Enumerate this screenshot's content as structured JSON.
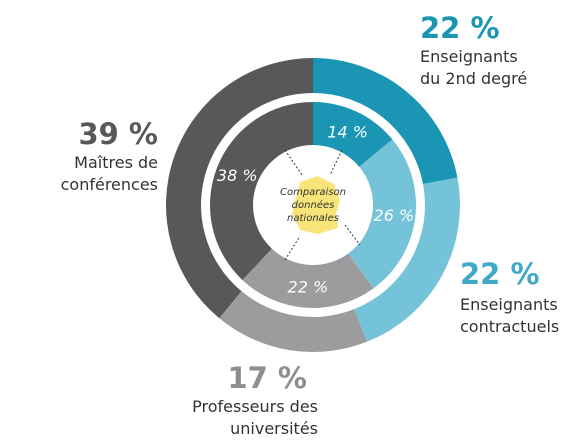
{
  "chart_data": {
    "type": "double-donut",
    "center_label": "Comparaison données nationales",
    "series": [
      {
        "name": "Enseignants du 2nd degré",
        "color": "#1a96b4",
        "text_color": "#1a96b4",
        "value": 22,
        "value_label": "22 %",
        "inner_value": 14,
        "inner_value_label": "14 %"
      },
      {
        "name": "Enseignants contractuels",
        "color": "#74c3d9",
        "text_color": "#3fa9c8",
        "value": 22,
        "value_label": "22 %",
        "inner_value": 26,
        "inner_value_label": "26 %"
      },
      {
        "name": "Professeurs des universités",
        "color": "#9c9c9e",
        "text_color": "#8e8e90",
        "value": 17,
        "value_label": "17 %",
        "inner_value": 22,
        "inner_value_label": "22 %"
      },
      {
        "name": "Maîtres de conférences",
        "color": "#58585a",
        "text_color": "#58585a",
        "value": 39,
        "value_label": "39 %",
        "inner_value": 38,
        "inner_value_label": "38 %"
      }
    ]
  }
}
